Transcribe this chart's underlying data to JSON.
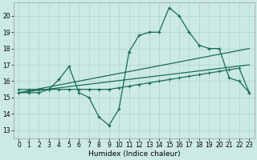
{
  "xlabel": "Humidex (Indice chaleur)",
  "bg_color": "#cceae4",
  "grid_color": "#aad4cc",
  "line_color": "#1a6b5a",
  "xlim": [
    -0.5,
    23.5
  ],
  "ylim": [
    12.5,
    20.8
  ],
  "yticks": [
    13,
    14,
    15,
    16,
    17,
    18,
    19,
    20
  ],
  "xticks": [
    0,
    1,
    2,
    3,
    4,
    5,
    6,
    7,
    8,
    9,
    10,
    11,
    12,
    13,
    14,
    15,
    16,
    17,
    18,
    19,
    20,
    21,
    22,
    23
  ],
  "line1_x": [
    0,
    1,
    2,
    3,
    4,
    5,
    6,
    7,
    8,
    9,
    10,
    11,
    12,
    13,
    14,
    15,
    16,
    17,
    18,
    19,
    20,
    21,
    22,
    23
  ],
  "line1_y": [
    15.3,
    15.3,
    15.3,
    15.5,
    16.1,
    16.9,
    15.3,
    15.0,
    13.8,
    13.3,
    14.3,
    17.8,
    18.8,
    19.0,
    19.0,
    20.5,
    20.0,
    19.0,
    18.2,
    18.0,
    18.0,
    16.2,
    16.0,
    15.3
  ],
  "line2_x": [
    0,
    1,
    2,
    3,
    4,
    5,
    6,
    7,
    8,
    9,
    10,
    11,
    12,
    13,
    14,
    15,
    16,
    17,
    18,
    19,
    20,
    21,
    22,
    23
  ],
  "line2_y": [
    15.5,
    15.5,
    15.5,
    15.5,
    15.5,
    15.5,
    15.5,
    15.5,
    15.5,
    15.5,
    15.6,
    15.7,
    15.8,
    15.9,
    16.0,
    16.1,
    16.2,
    16.3,
    16.4,
    16.5,
    16.6,
    16.7,
    16.8,
    15.3
  ],
  "line3_x": [
    0,
    23
  ],
  "line3_y": [
    15.3,
    18.0
  ],
  "line4_x": [
    0,
    23
  ],
  "line4_y": [
    15.3,
    17.0
  ]
}
